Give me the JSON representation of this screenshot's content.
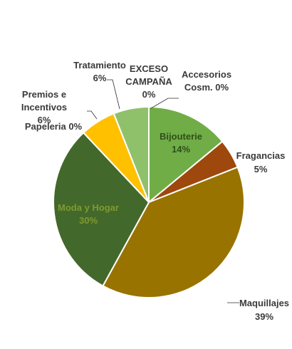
{
  "chart_data": {
    "type": "pie",
    "title": "",
    "slices": [
      {
        "name": "Accesorios Cosm.",
        "value": 0,
        "pct_label": "0%",
        "color": "#8a5a2a"
      },
      {
        "name": "Bijouterie",
        "value": 14,
        "pct_label": "14%",
        "color": "#70ad47"
      },
      {
        "name": "Fragancias",
        "value": 5,
        "pct_label": "5%",
        "color": "#9e480e"
      },
      {
        "name": "Maquillajes",
        "value": 39,
        "pct_label": "39%",
        "color": "#997300"
      },
      {
        "name": "Moda y Hogar",
        "value": 30,
        "pct_label": "30%",
        "color": "#43682b"
      },
      {
        "name": "Papeleria",
        "value": 0,
        "pct_label": "0%",
        "color": "#ffc000"
      },
      {
        "name": "Premios e Incentivos",
        "value": 6,
        "pct_label": "6%",
        "color": "#ffc000"
      },
      {
        "name": "Tratamiento",
        "value": 6,
        "pct_label": "6%",
        "color": "#8fc16b"
      },
      {
        "name": "EXCESO CAMPAÑA",
        "value": 0,
        "pct_label": "0%",
        "color": "#c9c9c9"
      }
    ],
    "labels": {
      "accesorios_l1": "Accesorios",
      "accesorios_l2": "Cosm. 0%",
      "bijouterie_l1": "Bijouterie",
      "bijouterie_l2": "14%",
      "fragancias_l1": "Fragancias",
      "fragancias_l2": "5%",
      "maquillajes_l1": "Maquillajes",
      "maquillajes_l2": "39%",
      "moda_l1": "Moda y Hogar",
      "moda_l2": "30%",
      "papeleria": "Papeleria 0%",
      "premios_l1": "Premios e",
      "premios_l2": "Incentivos",
      "premios_l3": "6%",
      "tratamiento_l1": "Tratamiento",
      "tratamiento_l2": "6%",
      "exceso_l1": "EXCESO",
      "exceso_l2": "CAMPAÑA",
      "exceso_l3": "0%"
    }
  }
}
